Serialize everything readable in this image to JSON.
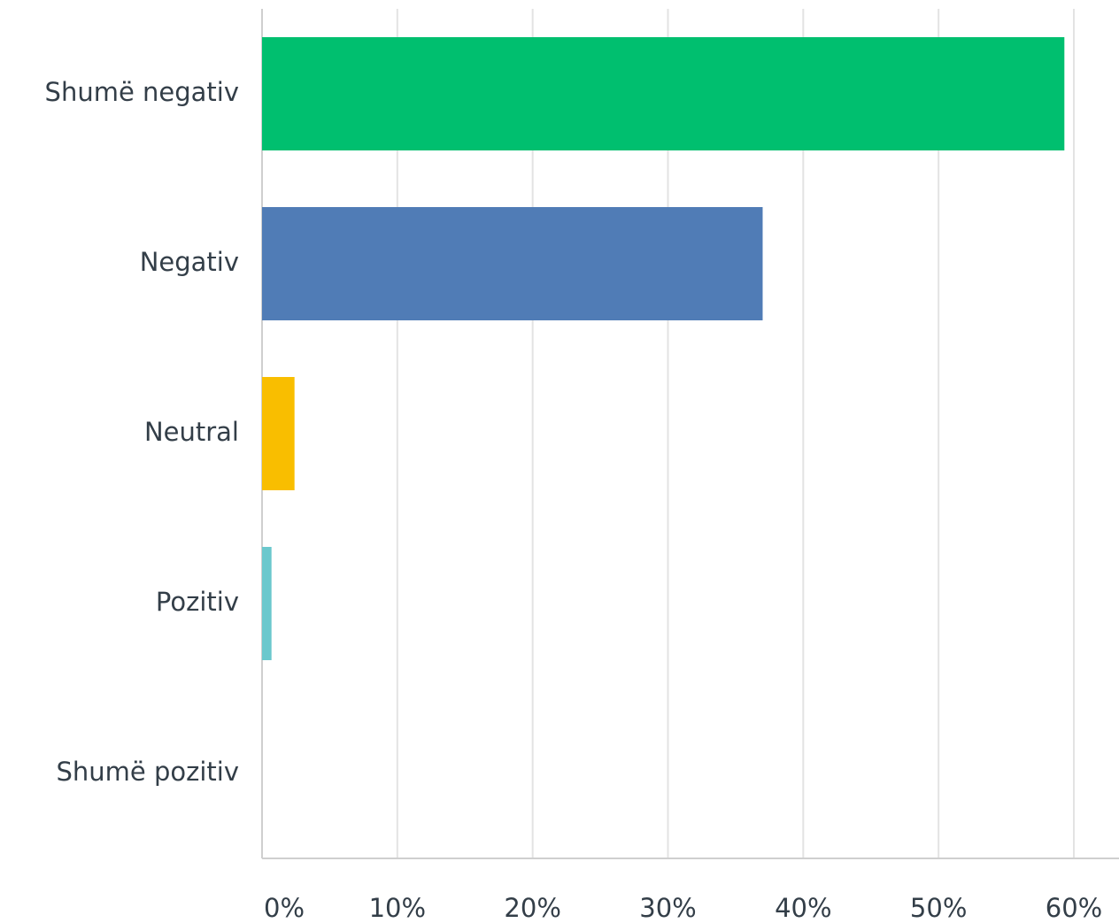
{
  "chart_data": {
    "type": "bar",
    "orientation": "horizontal",
    "categories": [
      "Shumë negativ",
      "Negativ",
      "Neutral",
      "Pozitiv",
      "Shumë pozitiv"
    ],
    "values": [
      59.3,
      37.0,
      2.4,
      0.7,
      0
    ],
    "colors": [
      "#00bf6f",
      "#507cb6",
      "#f9be00",
      "#6bc8cd",
      "#6bc8cd"
    ],
    "xlim": [
      0,
      60
    ],
    "xticks": [
      {
        "value": 0,
        "label": "0%"
      },
      {
        "value": 10,
        "label": "10%"
      },
      {
        "value": 20,
        "label": "20%"
      },
      {
        "value": 30,
        "label": "30%"
      },
      {
        "value": 40,
        "label": "40%"
      },
      {
        "value": 50,
        "label": "50%"
      },
      {
        "value": 60,
        "label": "60%"
      }
    ],
    "grid": true
  }
}
